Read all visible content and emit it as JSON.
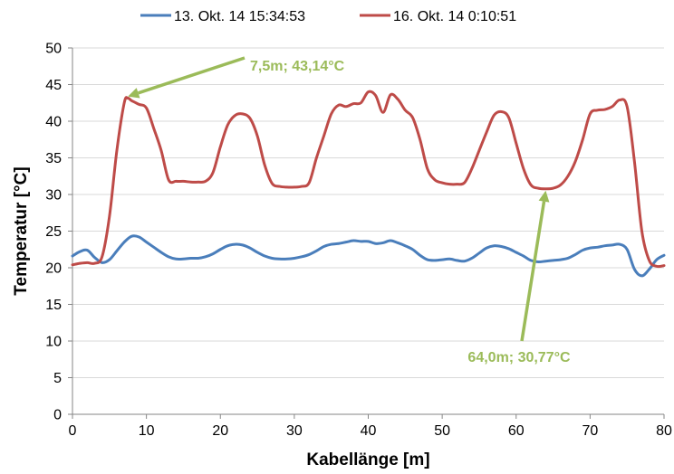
{
  "chart_data": {
    "type": "line",
    "xlabel": "Kabellänge [m]",
    "ylabel": "Temperatur [°C]",
    "xlim": [
      0,
      80
    ],
    "ylim": [
      0,
      50
    ],
    "xticks": [
      0,
      10,
      20,
      30,
      40,
      50,
      60,
      70,
      80
    ],
    "yticks": [
      0,
      5,
      10,
      15,
      20,
      25,
      30,
      35,
      40,
      45,
      50
    ],
    "grid": "horizontal",
    "legend_position": "top",
    "series": [
      {
        "name": "13. Okt. 14 15:34:53",
        "color": "#4a7ebb",
        "points": [
          [
            0,
            21.6
          ],
          [
            1,
            22.2
          ],
          [
            2,
            22.4
          ],
          [
            3,
            21.4
          ],
          [
            4,
            20.7
          ],
          [
            5,
            21.1
          ],
          [
            6,
            22.3
          ],
          [
            7,
            23.5
          ],
          [
            8,
            24.3
          ],
          [
            9,
            24.2
          ],
          [
            10,
            23.5
          ],
          [
            11,
            22.8
          ],
          [
            12,
            22.1
          ],
          [
            13,
            21.5
          ],
          [
            14,
            21.2
          ],
          [
            15,
            21.2
          ],
          [
            16,
            21.3
          ],
          [
            17,
            21.3
          ],
          [
            18,
            21.5
          ],
          [
            19,
            21.9
          ],
          [
            20,
            22.5
          ],
          [
            21,
            23.0
          ],
          [
            22,
            23.2
          ],
          [
            23,
            23.1
          ],
          [
            24,
            22.7
          ],
          [
            25,
            22.1
          ],
          [
            26,
            21.6
          ],
          [
            27,
            21.3
          ],
          [
            28,
            21.2
          ],
          [
            29,
            21.2
          ],
          [
            30,
            21.3
          ],
          [
            31,
            21.5
          ],
          [
            32,
            21.8
          ],
          [
            33,
            22.3
          ],
          [
            34,
            22.9
          ],
          [
            35,
            23.2
          ],
          [
            36,
            23.3
          ],
          [
            37,
            23.5
          ],
          [
            38,
            23.7
          ],
          [
            39,
            23.6
          ],
          [
            40,
            23.6
          ],
          [
            41,
            23.3
          ],
          [
            42,
            23.4
          ],
          [
            43,
            23.7
          ],
          [
            44,
            23.4
          ],
          [
            45,
            23.0
          ],
          [
            46,
            22.5
          ],
          [
            47,
            21.7
          ],
          [
            48,
            21.1
          ],
          [
            49,
            21.0
          ],
          [
            50,
            21.1
          ],
          [
            51,
            21.2
          ],
          [
            52,
            21.0
          ],
          [
            53,
            20.9
          ],
          [
            54,
            21.3
          ],
          [
            55,
            22.0
          ],
          [
            56,
            22.7
          ],
          [
            57,
            23.0
          ],
          [
            58,
            22.9
          ],
          [
            59,
            22.6
          ],
          [
            60,
            22.1
          ],
          [
            61,
            21.6
          ],
          [
            62,
            21.0
          ],
          [
            63,
            20.8
          ],
          [
            64,
            20.9
          ],
          [
            65,
            21.0
          ],
          [
            66,
            21.1
          ],
          [
            67,
            21.3
          ],
          [
            68,
            21.8
          ],
          [
            69,
            22.4
          ],
          [
            70,
            22.7
          ],
          [
            71,
            22.8
          ],
          [
            72,
            23.0
          ],
          [
            73,
            23.1
          ],
          [
            74,
            23.2
          ],
          [
            75,
            22.5
          ],
          [
            76,
            19.8
          ],
          [
            77,
            18.9
          ],
          [
            78,
            19.8
          ],
          [
            79,
            21.1
          ],
          [
            80,
            21.7
          ]
        ]
      },
      {
        "name": "16. Okt. 14 0:10:51",
        "color": "#be4b48",
        "points": [
          [
            0,
            20.4
          ],
          [
            1,
            20.6
          ],
          [
            2,
            20.7
          ],
          [
            3,
            20.6
          ],
          [
            4,
            21.5
          ],
          [
            5,
            27.0
          ],
          [
            6,
            36.0
          ],
          [
            7,
            42.5
          ],
          [
            7.5,
            43.14
          ],
          [
            8,
            42.8
          ],
          [
            9,
            42.3
          ],
          [
            10,
            41.8
          ],
          [
            11,
            39.0
          ],
          [
            12,
            36.0
          ],
          [
            13,
            32.0
          ],
          [
            14,
            31.8
          ],
          [
            15,
            31.8
          ],
          [
            16,
            31.7
          ],
          [
            17,
            31.7
          ],
          [
            18,
            31.8
          ],
          [
            19,
            33.0
          ],
          [
            20,
            36.5
          ],
          [
            21,
            39.5
          ],
          [
            22,
            40.8
          ],
          [
            23,
            41.0
          ],
          [
            24,
            40.4
          ],
          [
            25,
            38.0
          ],
          [
            26,
            34.0
          ],
          [
            27,
            31.5
          ],
          [
            28,
            31.1
          ],
          [
            29,
            31.0
          ],
          [
            30,
            31.0
          ],
          [
            31,
            31.1
          ],
          [
            32,
            31.6
          ],
          [
            33,
            35.0
          ],
          [
            34,
            38.0
          ],
          [
            35,
            41.0
          ],
          [
            36,
            42.2
          ],
          [
            37,
            42.0
          ],
          [
            38,
            42.4
          ],
          [
            39,
            42.5
          ],
          [
            40,
            44.0
          ],
          [
            41,
            43.5
          ],
          [
            42,
            41.2
          ],
          [
            43,
            43.6
          ],
          [
            44,
            43.0
          ],
          [
            45,
            41.5
          ],
          [
            46,
            40.5
          ],
          [
            47,
            37.5
          ],
          [
            48,
            33.5
          ],
          [
            49,
            32.0
          ],
          [
            50,
            31.6
          ],
          [
            51,
            31.4
          ],
          [
            52,
            31.4
          ],
          [
            53,
            31.6
          ],
          [
            54,
            33.5
          ],
          [
            55,
            36.0
          ],
          [
            56,
            38.5
          ],
          [
            57,
            40.8
          ],
          [
            58,
            41.3
          ],
          [
            59,
            40.5
          ],
          [
            60,
            37.0
          ],
          [
            61,
            33.5
          ],
          [
            62,
            31.3
          ],
          [
            63,
            30.85
          ],
          [
            64,
            30.77
          ],
          [
            65,
            30.85
          ],
          [
            66,
            31.3
          ],
          [
            67,
            32.5
          ],
          [
            68,
            34.5
          ],
          [
            69,
            37.5
          ],
          [
            70,
            41.0
          ],
          [
            71,
            41.5
          ],
          [
            72,
            41.6
          ],
          [
            73,
            42.0
          ],
          [
            74,
            42.9
          ],
          [
            75,
            42.0
          ],
          [
            76,
            34.5
          ],
          [
            77,
            25.0
          ],
          [
            78,
            21.0
          ],
          [
            79,
            20.2
          ],
          [
            80,
            20.3
          ]
        ]
      }
    ],
    "annotations": [
      {
        "text": "7,5m; 43,14°C",
        "x": 7.5,
        "y": 43.14,
        "color": "#9bbb59"
      },
      {
        "text": "64,0m; 30,77°C",
        "x": 64.0,
        "y": 30.77,
        "color": "#9bbb59"
      }
    ]
  }
}
